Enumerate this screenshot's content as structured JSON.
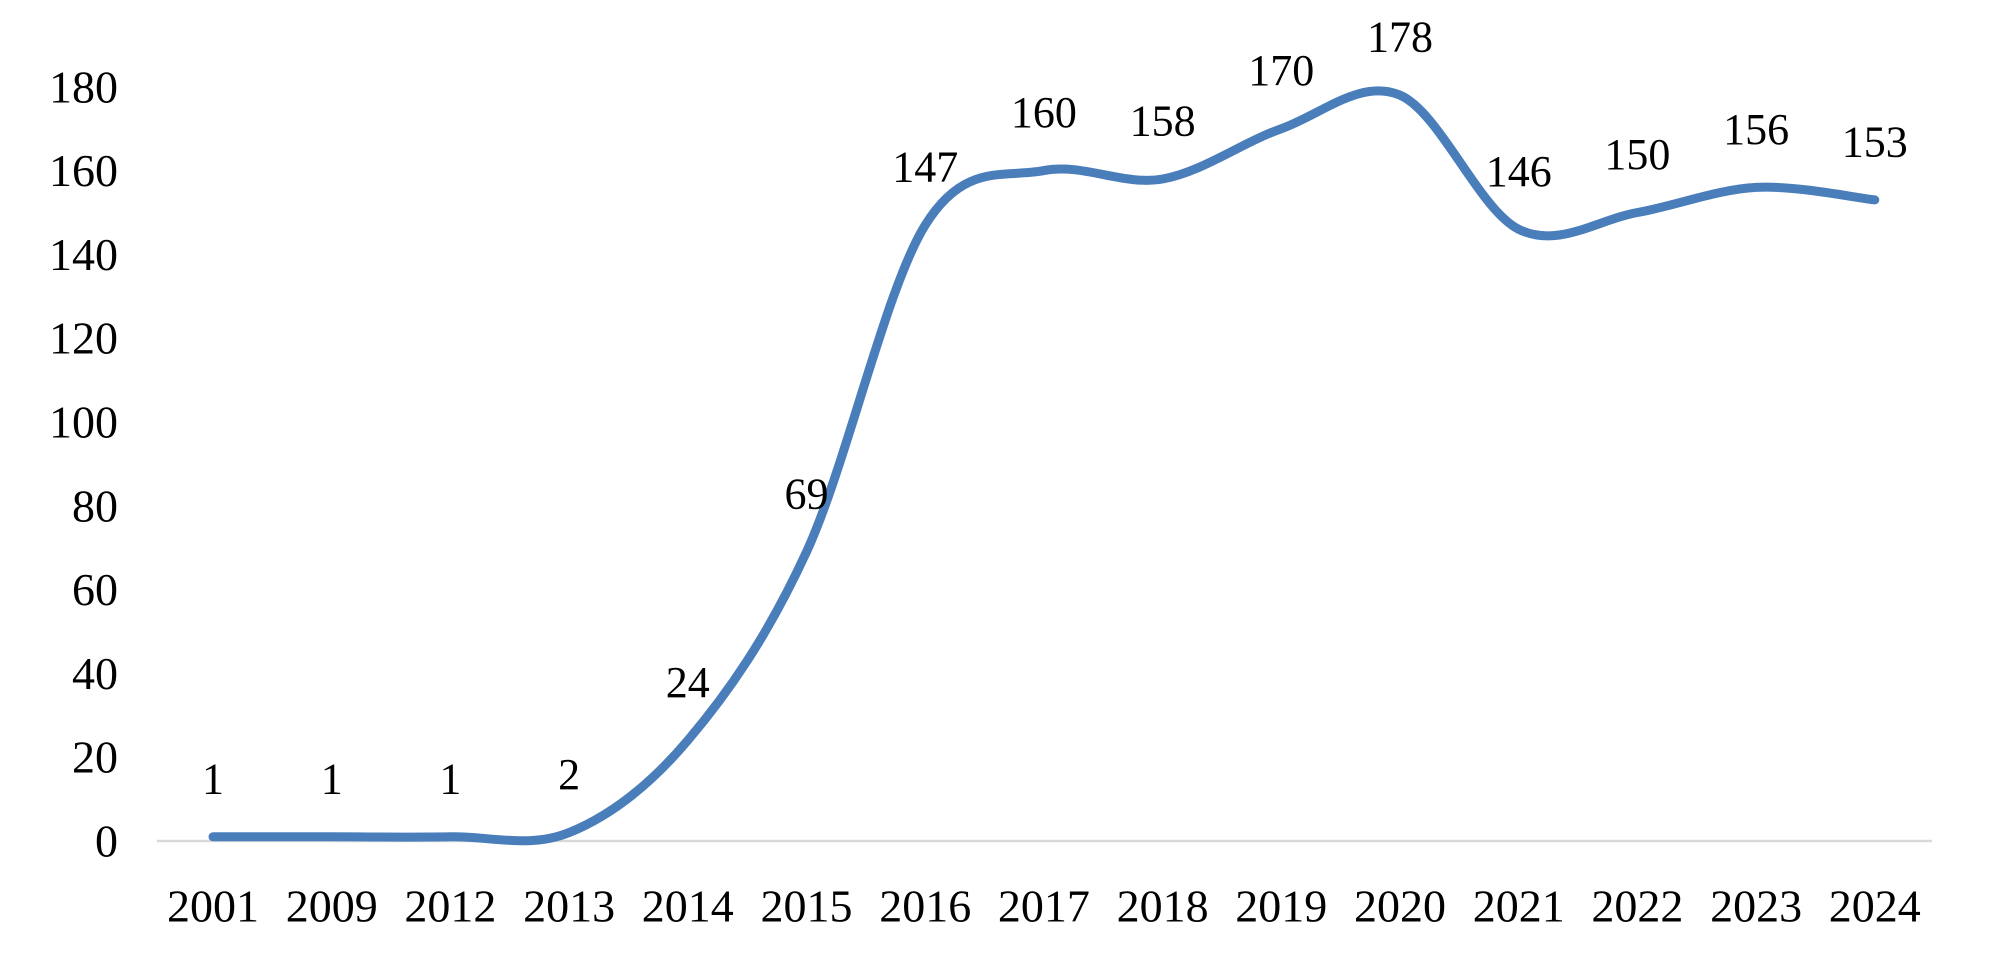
{
  "chart_data": {
    "type": "line",
    "title": "",
    "xlabel": "",
    "ylabel": "",
    "categories": [
      "2001",
      "2009",
      "2012",
      "2013",
      "2014",
      "2015",
      "2016",
      "2017",
      "2018",
      "2019",
      "2020",
      "2021",
      "2022",
      "2023",
      "2024"
    ],
    "values": [
      1,
      1,
      1,
      2,
      24,
      69,
      147,
      160,
      158,
      170,
      178,
      146,
      150,
      156,
      153
    ],
    "data_labels": [
      "1",
      "1",
      "1",
      "2",
      "24",
      "69",
      "147",
      "160",
      "158",
      "170",
      "178",
      "146",
      "150",
      "156",
      "153"
    ],
    "y_ticks": [
      0,
      20,
      40,
      60,
      80,
      100,
      120,
      140,
      160,
      180
    ],
    "ylim": [
      0,
      180
    ],
    "grid": "off",
    "legend": "none",
    "smooth": true,
    "line_color": "#4a7ebb",
    "axis_color": "#d9d9d9",
    "text_color": "#000000"
  }
}
